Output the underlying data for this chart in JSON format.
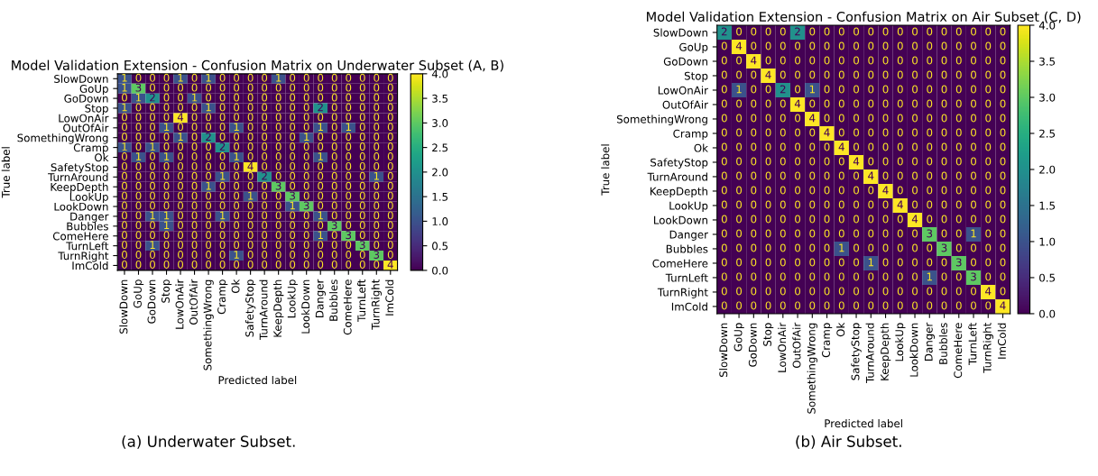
{
  "chart_data": [
    {
      "type": "heatmap",
      "title": "Model Validation Extension - Confusion Matrix on Underwater Subset (A, B)",
      "xlabel": "Predicted label",
      "ylabel": "True label",
      "categories": [
        "SlowDown",
        "GoUp",
        "GoDown",
        "Stop",
        "LowOnAir",
        "OutOfAir",
        "SomethingWrong",
        "Cramp",
        "Ok",
        "SafetyStop",
        "TurnAround",
        "KeepDepth",
        "LookUp",
        "LookDown",
        "Danger",
        "Bubbles",
        "ComeHere",
        "TurnLeft",
        "TurnRight",
        "ImCold"
      ],
      "y_categories": [
        "SlowDown",
        "GoUp",
        "GoDown",
        "Stop",
        "LowOnAir",
        "OutOfAir",
        "SomethingWrong",
        "Cramp",
        "Ok",
        "SafetyStop",
        "TurnAround",
        "KeepDepth",
        "LookUp",
        "LookDown",
        "Danger",
        "Bubbles",
        "ComeHere",
        "TurnLeft",
        "TurnRight",
        "ImCold"
      ],
      "cells": [
        [
          1,
          0,
          0,
          0,
          1,
          0,
          1,
          0,
          0,
          0,
          0,
          1,
          0,
          0,
          0,
          0,
          0,
          0,
          0,
          0
        ],
        [
          1,
          3,
          0,
          0,
          0,
          0,
          0,
          0,
          0,
          0,
          0,
          0,
          0,
          0,
          0,
          0,
          0,
          0,
          0,
          0
        ],
        [
          0,
          1,
          2,
          0,
          0,
          1,
          0,
          0,
          0,
          0,
          0,
          0,
          0,
          0,
          0,
          0,
          0,
          0,
          0,
          0
        ],
        [
          1,
          0,
          0,
          0,
          0,
          0,
          1,
          0,
          0,
          0,
          0,
          0,
          0,
          0,
          2,
          0,
          0,
          0,
          0,
          0
        ],
        [
          0,
          0,
          0,
          0,
          4,
          0,
          0,
          0,
          0,
          0,
          0,
          0,
          0,
          0,
          0,
          0,
          0,
          0,
          0,
          0
        ],
        [
          0,
          0,
          0,
          1,
          0,
          0,
          0,
          0,
          1,
          0,
          0,
          0,
          0,
          0,
          1,
          0,
          1,
          0,
          0,
          0
        ],
        [
          0,
          0,
          0,
          0,
          1,
          0,
          2,
          0,
          0,
          0,
          0,
          0,
          0,
          1,
          0,
          0,
          0,
          0,
          0,
          0
        ],
        [
          1,
          0,
          1,
          0,
          0,
          0,
          0,
          2,
          0,
          0,
          0,
          0,
          0,
          0,
          0,
          0,
          0,
          0,
          0,
          0
        ],
        [
          0,
          1,
          0,
          1,
          0,
          0,
          0,
          0,
          1,
          0,
          0,
          0,
          0,
          0,
          1,
          0,
          0,
          0,
          0,
          0
        ],
        [
          0,
          0,
          0,
          0,
          0,
          0,
          0,
          0,
          0,
          4,
          0,
          0,
          0,
          0,
          0,
          0,
          0,
          0,
          0,
          0
        ],
        [
          0,
          0,
          0,
          0,
          0,
          0,
          0,
          1,
          0,
          0,
          2,
          0,
          0,
          0,
          0,
          0,
          0,
          0,
          1,
          0
        ],
        [
          0,
          0,
          0,
          0,
          0,
          0,
          1,
          0,
          0,
          0,
          0,
          3,
          0,
          0,
          0,
          0,
          0,
          0,
          0,
          0
        ],
        [
          0,
          0,
          0,
          0,
          0,
          0,
          0,
          0,
          0,
          1,
          0,
          0,
          3,
          0,
          0,
          0,
          0,
          0,
          0,
          0
        ],
        [
          0,
          0,
          0,
          0,
          0,
          0,
          0,
          0,
          0,
          0,
          0,
          0,
          1,
          3,
          0,
          0,
          0,
          0,
          0,
          0
        ],
        [
          0,
          0,
          1,
          1,
          0,
          0,
          0,
          1,
          0,
          0,
          0,
          0,
          0,
          0,
          1,
          0,
          0,
          0,
          0,
          0
        ],
        [
          0,
          0,
          0,
          1,
          0,
          0,
          0,
          0,
          0,
          0,
          0,
          0,
          0,
          0,
          0,
          3,
          0,
          0,
          0,
          0
        ],
        [
          0,
          0,
          0,
          0,
          0,
          0,
          0,
          0,
          0,
          0,
          0,
          0,
          0,
          0,
          1,
          0,
          3,
          0,
          0,
          0
        ],
        [
          0,
          0,
          1,
          0,
          0,
          0,
          0,
          0,
          0,
          0,
          0,
          0,
          0,
          0,
          0,
          0,
          0,
          3,
          0,
          0
        ],
        [
          0,
          0,
          0,
          0,
          0,
          0,
          0,
          0,
          1,
          0,
          0,
          0,
          0,
          0,
          0,
          0,
          0,
          0,
          3,
          0
        ],
        [
          0,
          0,
          0,
          0,
          0,
          0,
          0,
          0,
          0,
          0,
          0,
          0,
          0,
          0,
          0,
          0,
          0,
          0,
          0,
          4
        ]
      ],
      "clim": [
        0,
        4
      ],
      "cticks": [
        {
          "value": 0,
          "label": "0.0"
        },
        {
          "value": 0.5,
          "label": "0.5"
        },
        {
          "value": 1,
          "label": "1.0"
        },
        {
          "value": 1.5,
          "label": "1.5"
        },
        {
          "value": 2,
          "label": "2.0"
        },
        {
          "value": 2.5,
          "label": "2.5"
        },
        {
          "value": 3,
          "label": "3.0"
        },
        {
          "value": 3.5,
          "label": "3.5"
        },
        {
          "value": 4,
          "label": "4.0"
        }
      ],
      "data_labels": true,
      "grid": false,
      "annotations": [
        "(a) Underwater Subset."
      ]
    },
    {
      "type": "heatmap",
      "title": "Model Validation Extension - Confusion Matrix on Air Subset (C, D)",
      "xlabel": "Predicted label",
      "ylabel": "True label",
      "categories": [
        "SlowDown",
        "GoUp",
        "GoDown",
        "Stop",
        "LowOnAir",
        "OutOfAir",
        "SomethingWrong",
        "Cramp",
        "Ok",
        "SafetyStop",
        "TurnAround",
        "KeepDepth",
        "LookUp",
        "LookDown",
        "Danger",
        "Bubbles",
        "ComeHere",
        "TurnLeft",
        "TurnRight",
        "ImCold"
      ],
      "y_categories": [
        "SlowDown",
        "GoUp",
        "GoDown",
        "Stop",
        "LowOnAir",
        "OutOfAir",
        "SomethingWrong",
        "Cramp",
        "Ok",
        "SafetyStop",
        "TurnAround",
        "KeepDepth",
        "LookUp",
        "LookDown",
        "Danger",
        "Bubbles",
        "ComeHere",
        "TurnLeft",
        "TurnRight",
        "ImCold"
      ],
      "cells": [
        [
          2,
          0,
          0,
          0,
          0,
          2,
          0,
          0,
          0,
          0,
          0,
          0,
          0,
          0,
          0,
          0,
          0,
          0,
          0,
          0
        ],
        [
          0,
          4,
          0,
          0,
          0,
          0,
          0,
          0,
          0,
          0,
          0,
          0,
          0,
          0,
          0,
          0,
          0,
          0,
          0,
          0
        ],
        [
          0,
          0,
          4,
          0,
          0,
          0,
          0,
          0,
          0,
          0,
          0,
          0,
          0,
          0,
          0,
          0,
          0,
          0,
          0,
          0
        ],
        [
          0,
          0,
          0,
          4,
          0,
          0,
          0,
          0,
          0,
          0,
          0,
          0,
          0,
          0,
          0,
          0,
          0,
          0,
          0,
          0
        ],
        [
          0,
          1,
          0,
          0,
          2,
          0,
          1,
          0,
          0,
          0,
          0,
          0,
          0,
          0,
          0,
          0,
          0,
          0,
          0,
          0
        ],
        [
          0,
          0,
          0,
          0,
          0,
          4,
          0,
          0,
          0,
          0,
          0,
          0,
          0,
          0,
          0,
          0,
          0,
          0,
          0,
          0
        ],
        [
          0,
          0,
          0,
          0,
          0,
          0,
          4,
          0,
          0,
          0,
          0,
          0,
          0,
          0,
          0,
          0,
          0,
          0,
          0,
          0
        ],
        [
          0,
          0,
          0,
          0,
          0,
          0,
          0,
          4,
          0,
          0,
          0,
          0,
          0,
          0,
          0,
          0,
          0,
          0,
          0,
          0
        ],
        [
          0,
          0,
          0,
          0,
          0,
          0,
          0,
          0,
          4,
          0,
          0,
          0,
          0,
          0,
          0,
          0,
          0,
          0,
          0,
          0
        ],
        [
          0,
          0,
          0,
          0,
          0,
          0,
          0,
          0,
          0,
          4,
          0,
          0,
          0,
          0,
          0,
          0,
          0,
          0,
          0,
          0
        ],
        [
          0,
          0,
          0,
          0,
          0,
          0,
          0,
          0,
          0,
          0,
          4,
          0,
          0,
          0,
          0,
          0,
          0,
          0,
          0,
          0
        ],
        [
          0,
          0,
          0,
          0,
          0,
          0,
          0,
          0,
          0,
          0,
          0,
          4,
          0,
          0,
          0,
          0,
          0,
          0,
          0,
          0
        ],
        [
          0,
          0,
          0,
          0,
          0,
          0,
          0,
          0,
          0,
          0,
          0,
          0,
          4,
          0,
          0,
          0,
          0,
          0,
          0,
          0
        ],
        [
          0,
          0,
          0,
          0,
          0,
          0,
          0,
          0,
          0,
          0,
          0,
          0,
          0,
          4,
          0,
          0,
          0,
          0,
          0,
          0
        ],
        [
          0,
          0,
          0,
          0,
          0,
          0,
          0,
          0,
          0,
          0,
          0,
          0,
          0,
          0,
          3,
          0,
          0,
          1,
          0,
          0
        ],
        [
          0,
          0,
          0,
          0,
          0,
          0,
          0,
          0,
          1,
          0,
          0,
          0,
          0,
          0,
          0,
          3,
          0,
          0,
          0,
          0
        ],
        [
          0,
          0,
          0,
          0,
          0,
          0,
          0,
          0,
          0,
          0,
          1,
          0,
          0,
          0,
          0,
          0,
          3,
          0,
          0,
          0
        ],
        [
          0,
          0,
          0,
          0,
          0,
          0,
          0,
          0,
          0,
          0,
          0,
          0,
          0,
          0,
          1,
          0,
          0,
          3,
          0,
          0
        ],
        [
          0,
          0,
          0,
          0,
          0,
          0,
          0,
          0,
          0,
          0,
          0,
          0,
          0,
          0,
          0,
          0,
          0,
          0,
          4,
          0
        ],
        [
          0,
          0,
          0,
          0,
          0,
          0,
          0,
          0,
          0,
          0,
          0,
          0,
          0,
          0,
          0,
          0,
          0,
          0,
          0,
          4
        ]
      ],
      "clim": [
        0,
        4
      ],
      "cticks": [
        {
          "value": 0,
          "label": "0.0"
        },
        {
          "value": 0.5,
          "label": "0.5"
        },
        {
          "value": 1,
          "label": "1.0"
        },
        {
          "value": 1.5,
          "label": "1.5"
        },
        {
          "value": 2,
          "label": "2.0"
        },
        {
          "value": 2.5,
          "label": "2.5"
        },
        {
          "value": 3,
          "label": "3.0"
        },
        {
          "value": 3.5,
          "label": "3.5"
        },
        {
          "value": 4,
          "label": "4.0"
        }
      ],
      "data_labels": true,
      "grid": false,
      "annotations": [
        "(b) Air Subset."
      ]
    }
  ]
}
